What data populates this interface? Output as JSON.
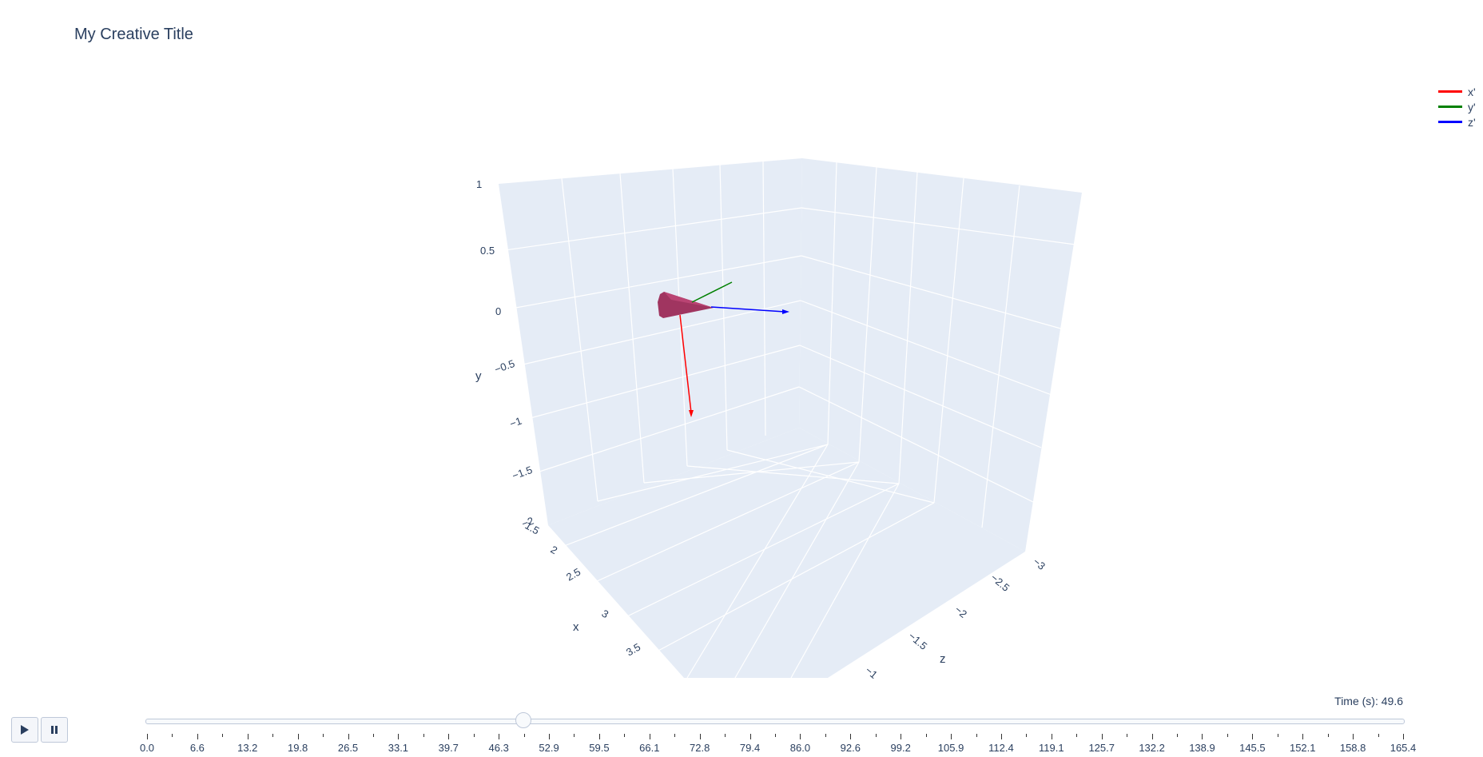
{
  "title": "My Creative Title",
  "legend": [
    {
      "label": "x'",
      "color": "#ff0000"
    },
    {
      "label": "y'",
      "color": "#008000"
    },
    {
      "label": "z'",
      "color": "#0000ff"
    }
  ],
  "scene": {
    "bgcolor": "#e5ecf6",
    "grid_color": "#ffffff",
    "x_axis": {
      "title": "x",
      "ticks": [
        "1.5",
        "2",
        "2.5",
        "3",
        "3.5"
      ]
    },
    "y_axis": {
      "title": "y",
      "ticks": [
        "1",
        "0.5",
        "0",
        "−0.5",
        "−1",
        "−1.5",
        "−2"
      ]
    },
    "z_axis": {
      "title": "z",
      "ticks": [
        "−3",
        "−2.5",
        "−2",
        "−1.5",
        "−1"
      ]
    },
    "body_color": "#a03560"
  },
  "chart_data": {
    "type": "3d-scatter",
    "title": "My Creative Title",
    "series": [
      {
        "name": "x'",
        "color": "#ff0000"
      },
      {
        "name": "y'",
        "color": "#008000"
      },
      {
        "name": "z'",
        "color": "#0000ff"
      }
    ],
    "x_range": [
      1.5,
      3.5
    ],
    "y_range": [
      -2,
      1
    ],
    "z_range": [
      -3,
      -1
    ],
    "grid": true,
    "legend_position": "top-right"
  },
  "controls": {
    "play_icon": "play-icon",
    "pause_icon": "pause-icon"
  },
  "slider": {
    "prefix": "Time (s): ",
    "current": "49.6",
    "current_value": 49.6,
    "min": 0.0,
    "max": 165.4,
    "ticks": [
      "0.0",
      "6.6",
      "13.2",
      "19.8",
      "26.5",
      "33.1",
      "39.7",
      "46.3",
      "52.9",
      "59.5",
      "66.1",
      "72.8",
      "79.4",
      "86.0",
      "92.6",
      "99.2",
      "105.9",
      "112.4",
      "119.1",
      "125.7",
      "132.2",
      "138.9",
      "145.5",
      "152.1",
      "158.8",
      "165.4"
    ]
  }
}
